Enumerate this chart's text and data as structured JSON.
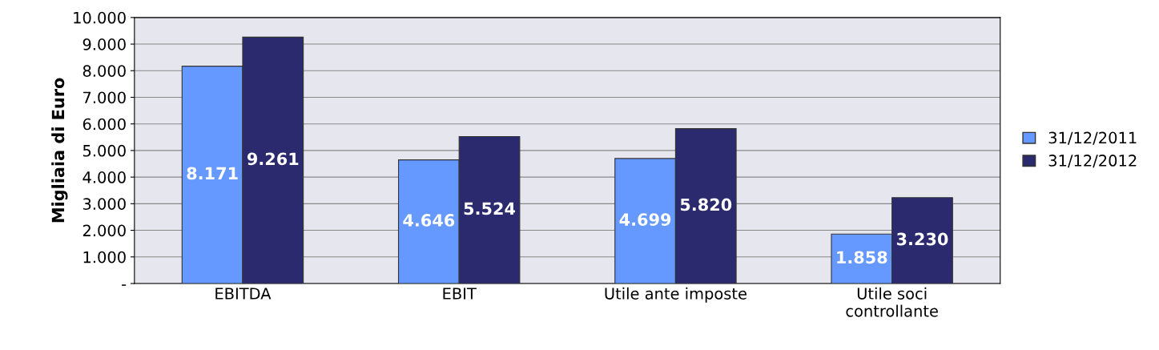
{
  "chart_data": {
    "type": "bar",
    "ylabel": "Migliaia di Euro",
    "categories": [
      "EBITDA",
      "EBIT",
      "Utile ante imposte",
      "Utile soci\ncontrollante"
    ],
    "series": [
      {
        "name": "31/12/2011",
        "color": "#6699ff",
        "values": [
          8171,
          4646,
          4699,
          1858
        ],
        "value_labels": [
          "8.171",
          "4.646",
          "4.699",
          "1.858"
        ]
      },
      {
        "name": "31/12/2012",
        "color": "#2b2a6e",
        "values": [
          9261,
          5524,
          5820,
          3230
        ],
        "value_labels": [
          "9.261",
          "5.524",
          "5.820",
          "3.230"
        ]
      }
    ],
    "ylim": [
      0,
      10000
    ],
    "yticks": [
      {
        "value": 0,
        "label": "-"
      },
      {
        "value": 1000,
        "label": "1.000"
      },
      {
        "value": 2000,
        "label": "2.000"
      },
      {
        "value": 3000,
        "label": "3.000"
      },
      {
        "value": 4000,
        "label": "4.000"
      },
      {
        "value": 5000,
        "label": "5.000"
      },
      {
        "value": 6000,
        "label": "6.000"
      },
      {
        "value": 7000,
        "label": "7.000"
      },
      {
        "value": 8000,
        "label": "8.000"
      },
      {
        "value": 9000,
        "label": "9.000"
      },
      {
        "value": 10000,
        "label": "10.000"
      }
    ],
    "grid": "y",
    "legend": "right"
  }
}
